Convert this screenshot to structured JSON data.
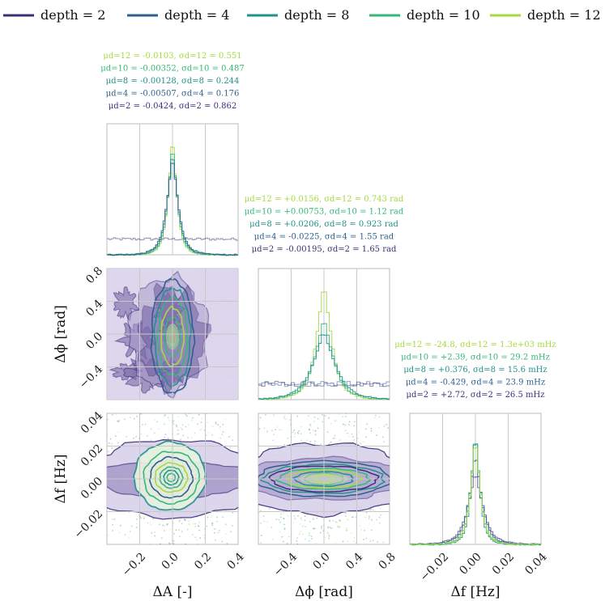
{
  "chart_data": {
    "type": "scatter",
    "subtype": "corner-plot",
    "colors": {
      "depth2": "#3f2d7a",
      "depth4": "#2f5f8d",
      "depth8": "#21918c",
      "depth10": "#35b779",
      "depth12": "#a6da3f"
    },
    "legend": {
      "placement": "top",
      "entries": [
        {
          "key": "depth2",
          "label": "depth = 2"
        },
        {
          "key": "depth4",
          "label": "depth = 4"
        },
        {
          "key": "depth8",
          "label": "depth = 8"
        },
        {
          "key": "depth10",
          "label": "depth = 10"
        },
        {
          "key": "depth12",
          "label": "depth = 12"
        }
      ]
    },
    "parameters": [
      {
        "key": "A",
        "label": "ΔA [-]",
        "range": [
          -0.4,
          0.4
        ],
        "ticks": [
          "−0.2",
          "0.0",
          "0.2",
          "0.4"
        ],
        "tick_values": [
          -0.2,
          0.0,
          0.2,
          0.4
        ]
      },
      {
        "key": "phi",
        "label": "Δϕ [rad]",
        "range": [
          -0.8,
          0.8
        ],
        "ticks": [
          "−0.4",
          "0.0",
          "0.4",
          "0.8"
        ],
        "tick_values": [
          -0.4,
          0.0,
          0.4,
          0.8
        ]
      },
      {
        "key": "f",
        "label": "Δf [Hz]",
        "range": [
          -0.04,
          0.04
        ],
        "ticks": [
          "−0.02",
          "0.00",
          "0.02",
          "0.04"
        ],
        "tick_values": [
          -0.02,
          0.0,
          0.02,
          0.04
        ]
      }
    ],
    "y_ticks": {
      "phi": {
        "ticks": [
          "−0.4",
          "0.0",
          "0.4",
          "0.8"
        ],
        "tick_values": [
          -0.4,
          0.0,
          0.4,
          0.8
        ]
      },
      "f": {
        "ticks": [
          "−0.02",
          "0.00",
          "0.02",
          "0.04"
        ],
        "tick_values": [
          -0.02,
          0.0,
          0.02,
          0.04
        ]
      }
    },
    "y_labels": {
      "phi": "Δϕ [rad]",
      "f": "Δf [Hz]"
    },
    "stats": {
      "A": [
        {
          "key": "depth12",
          "text": "μd=12 = -0.0103, σd=12 = 0.551"
        },
        {
          "key": "depth10",
          "text": "μd=10 = -0.00352, σd=10 = 0.487"
        },
        {
          "key": "depth8",
          "text": "μd=8 = -0.00128, σd=8 = 0.244"
        },
        {
          "key": "depth4",
          "text": "μd=4 = -0.00507, σd=4 = 0.176"
        },
        {
          "key": "depth2",
          "text": "μd=2 = -0.0424, σd=2 = 0.862"
        }
      ],
      "phi": [
        {
          "key": "depth12",
          "text": "μd=12 = +0.0156, σd=12 = 0.743 rad"
        },
        {
          "key": "depth10",
          "text": "μd=10 = +0.00753, σd=10 = 1.12 rad"
        },
        {
          "key": "depth8",
          "text": "μd=8 = +0.0206, σd=8 = 0.923 rad"
        },
        {
          "key": "depth4",
          "text": "μd=4 = -0.0225, σd=4 = 1.55 rad"
        },
        {
          "key": "depth2",
          "text": "μd=2 = -0.00195, σd=2 = 1.65 rad"
        }
      ],
      "f": [
        {
          "key": "depth12",
          "text": "μd=12 = -24.8, σd=12 = 1.3e+03 mHz"
        },
        {
          "key": "depth10",
          "text": "μd=10 = +2.39, σd=10 = 29.2 mHz"
        },
        {
          "key": "depth8",
          "text": "μd=8 = +0.376, σd=8 = 15.6 mHz"
        },
        {
          "key": "depth4",
          "text": "μd=4 = -0.429, σd=4 = 23.9 mHz"
        },
        {
          "key": "depth2",
          "text": "μd=2 = +2.72, σd=2 = 26.5 mHz"
        }
      ]
    },
    "grid": true
  }
}
